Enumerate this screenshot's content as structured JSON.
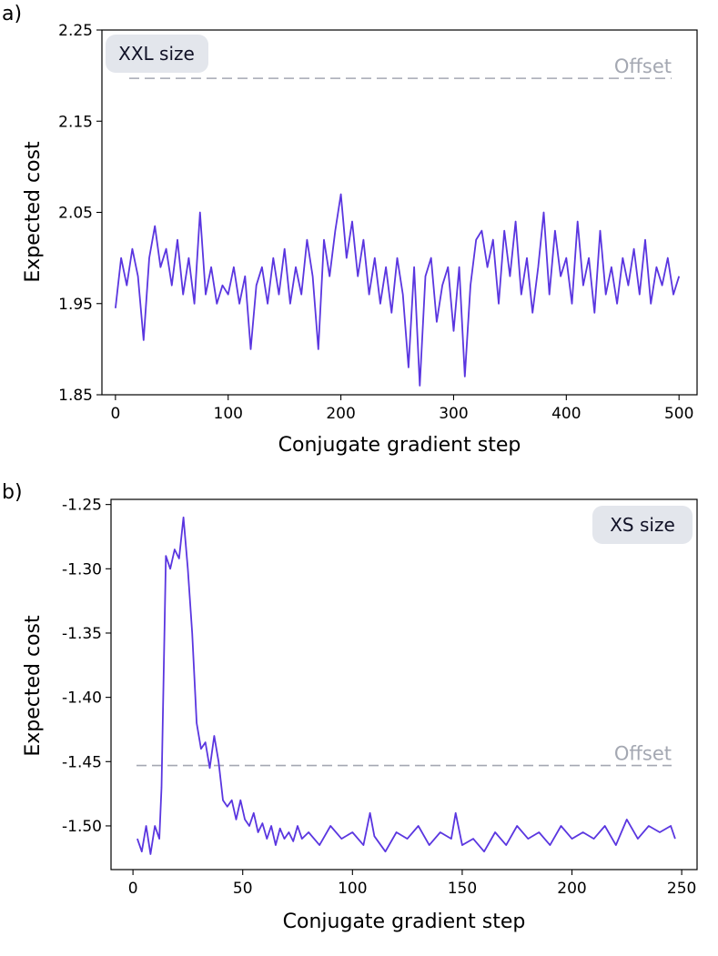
{
  "colors": {
    "series": "#5a36e0",
    "offset": "#a4a8b2",
    "badge_bg": "#e3e6ec",
    "badge_text": "#101126"
  },
  "chart_data": [
    {
      "panel_label": "a)",
      "type": "line",
      "xlabel": "Conjugate gradient step",
      "ylabel": "Expected cost",
      "xlim": [
        -12,
        516
      ],
      "ylim": [
        1.85,
        2.25
      ],
      "xticks": [
        0,
        100,
        200,
        300,
        400,
        500
      ],
      "yticks": [
        1.85,
        1.95,
        2.05,
        2.15,
        2.25
      ],
      "ytick_labels": [
        "1.85",
        "1.95",
        "2.05",
        "2.15",
        "2.25"
      ],
      "grid": false,
      "badge": "XXL size",
      "badge_position": "top-left",
      "offset": {
        "label": "Offset",
        "value": 2.197
      },
      "series": [
        {
          "x": [
            0,
            5,
            10,
            15,
            20,
            25,
            30,
            35,
            40,
            45,
            50,
            55,
            60,
            65,
            70,
            75,
            80,
            85,
            90,
            95,
            100,
            105,
            110,
            115,
            120,
            125,
            130,
            135,
            140,
            145,
            150,
            155,
            160,
            165,
            170,
            175,
            180,
            185,
            190,
            195,
            200,
            205,
            210,
            215,
            220,
            225,
            230,
            235,
            240,
            245,
            250,
            255,
            260,
            265,
            270,
            275,
            280,
            285,
            290,
            295,
            300,
            305,
            310,
            315,
            320,
            325,
            330,
            335,
            340,
            345,
            350,
            355,
            360,
            365,
            370,
            375,
            380,
            385,
            390,
            395,
            400,
            405,
            410,
            415,
            420,
            425,
            430,
            435,
            440,
            445,
            450,
            455,
            460,
            465,
            470,
            475,
            480,
            485,
            490,
            495,
            500
          ],
          "values": [
            1.945,
            2.0,
            1.97,
            2.01,
            1.98,
            1.91,
            2.0,
            2.035,
            1.99,
            2.01,
            1.97,
            2.02,
            1.96,
            2.0,
            1.95,
            2.05,
            1.96,
            1.99,
            1.95,
            1.97,
            1.96,
            1.99,
            1.95,
            1.98,
            1.9,
            1.97,
            1.99,
            1.95,
            2.0,
            1.96,
            2.01,
            1.95,
            1.99,
            1.96,
            2.02,
            1.98,
            1.9,
            2.02,
            1.98,
            2.03,
            2.07,
            2.0,
            2.04,
            1.98,
            2.02,
            1.96,
            2.0,
            1.95,
            1.99,
            1.94,
            2.0,
            1.96,
            1.88,
            1.99,
            1.86,
            1.98,
            2.0,
            1.93,
            1.97,
            1.99,
            1.92,
            1.99,
            1.87,
            1.97,
            2.02,
            2.03,
            1.99,
            2.02,
            1.95,
            2.03,
            1.98,
            2.04,
            1.96,
            2.0,
            1.94,
            1.99,
            2.05,
            1.96,
            2.03,
            1.98,
            2.0,
            1.95,
            2.04,
            1.97,
            2.0,
            1.94,
            2.03,
            1.96,
            1.99,
            1.95,
            2.0,
            1.97,
            2.01,
            1.96,
            2.02,
            1.95,
            1.99,
            1.97,
            2.0,
            1.96,
            1.98
          ]
        }
      ]
    },
    {
      "panel_label": "b)",
      "type": "line",
      "xlabel": "Conjugate gradient step",
      "ylabel": "Expected cost",
      "xlim": [
        -10,
        257
      ],
      "ylim": [
        -1.534,
        -1.246
      ],
      "xticks": [
        0,
        50,
        100,
        150,
        200,
        250
      ],
      "yticks": [
        -1.5,
        -1.45,
        -1.4,
        -1.35,
        -1.3,
        -1.25
      ],
      "ytick_labels": [
        "-1.50",
        "-1.45",
        "-1.40",
        "-1.35",
        "-1.30",
        "-1.25"
      ],
      "grid": false,
      "badge": "XS size",
      "badge_position": "top-right",
      "offset": {
        "label": "Offset",
        "value": -1.453
      },
      "series": [
        {
          "x": [
            2,
            4,
            6,
            8,
            10,
            12,
            13,
            15,
            17,
            19,
            21,
            23,
            25,
            27,
            29,
            31,
            33,
            35,
            37,
            39,
            41,
            43,
            45,
            47,
            49,
            51,
            53,
            55,
            57,
            59,
            61,
            63,
            65,
            67,
            69,
            71,
            73,
            75,
            77,
            80,
            85,
            90,
            95,
            100,
            105,
            108,
            110,
            115,
            120,
            125,
            130,
            135,
            140,
            145,
            147,
            150,
            155,
            160,
            165,
            170,
            175,
            180,
            185,
            190,
            195,
            200,
            205,
            210,
            215,
            220,
            225,
            230,
            235,
            240,
            245,
            247
          ],
          "values": [
            -1.51,
            -1.52,
            -1.5,
            -1.522,
            -1.5,
            -1.51,
            -1.47,
            -1.29,
            -1.3,
            -1.285,
            -1.292,
            -1.26,
            -1.3,
            -1.35,
            -1.42,
            -1.44,
            -1.435,
            -1.455,
            -1.43,
            -1.45,
            -1.48,
            -1.485,
            -1.48,
            -1.495,
            -1.48,
            -1.495,
            -1.5,
            -1.49,
            -1.505,
            -1.498,
            -1.51,
            -1.5,
            -1.515,
            -1.502,
            -1.51,
            -1.505,
            -1.512,
            -1.5,
            -1.51,
            -1.505,
            -1.515,
            -1.5,
            -1.51,
            -1.505,
            -1.515,
            -1.49,
            -1.508,
            -1.52,
            -1.505,
            -1.51,
            -1.5,
            -1.515,
            -1.505,
            -1.51,
            -1.49,
            -1.515,
            -1.51,
            -1.52,
            -1.505,
            -1.515,
            -1.5,
            -1.51,
            -1.505,
            -1.515,
            -1.5,
            -1.51,
            -1.505,
            -1.51,
            -1.5,
            -1.515,
            -1.495,
            -1.51,
            -1.5,
            -1.505,
            -1.5,
            -1.51
          ]
        }
      ]
    }
  ]
}
